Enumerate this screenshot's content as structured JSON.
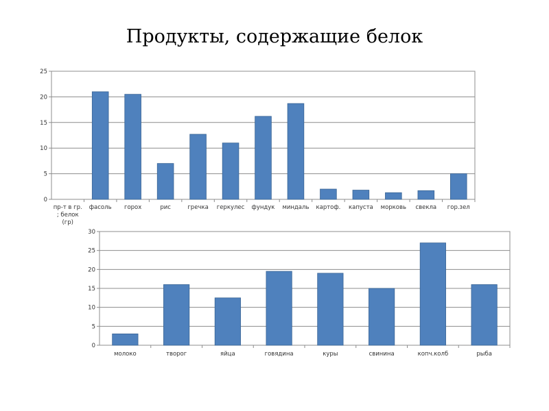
{
  "title": "Продукты, содержащие белок",
  "chart_data": [
    {
      "type": "bar",
      "categories": [
        "пр-т в гр.\n; белок\n(гр)",
        "фасоль",
        "горох",
        "рис",
        "гречка",
        "геркулес",
        "фундук",
        "миндаль",
        "картоф.",
        "капуста",
        "морковь",
        "свекла",
        "гор.зел"
      ],
      "values": [
        0,
        21,
        20.5,
        7,
        12.7,
        11,
        16.2,
        18.7,
        2,
        1.8,
        1.3,
        1.7,
        5
      ],
      "ylim": [
        0,
        25
      ],
      "yticks": [
        0,
        5,
        10,
        15,
        20,
        25
      ],
      "grid": true,
      "colors": {
        "bar": "#4F81BD",
        "grid": "#8C8C8C"
      }
    },
    {
      "type": "bar",
      "categories": [
        "молоко",
        "творог",
        "яйца",
        "говядина",
        "куры",
        "свинина",
        "копч.колб",
        "рыба"
      ],
      "values": [
        3,
        16,
        12.5,
        19.5,
        19,
        15,
        27,
        16
      ],
      "ylim": [
        0,
        30
      ],
      "yticks": [
        0,
        5,
        10,
        15,
        20,
        25,
        30
      ],
      "grid": true,
      "colors": {
        "bar": "#4F81BD",
        "grid": "#8C8C8C"
      }
    }
  ]
}
